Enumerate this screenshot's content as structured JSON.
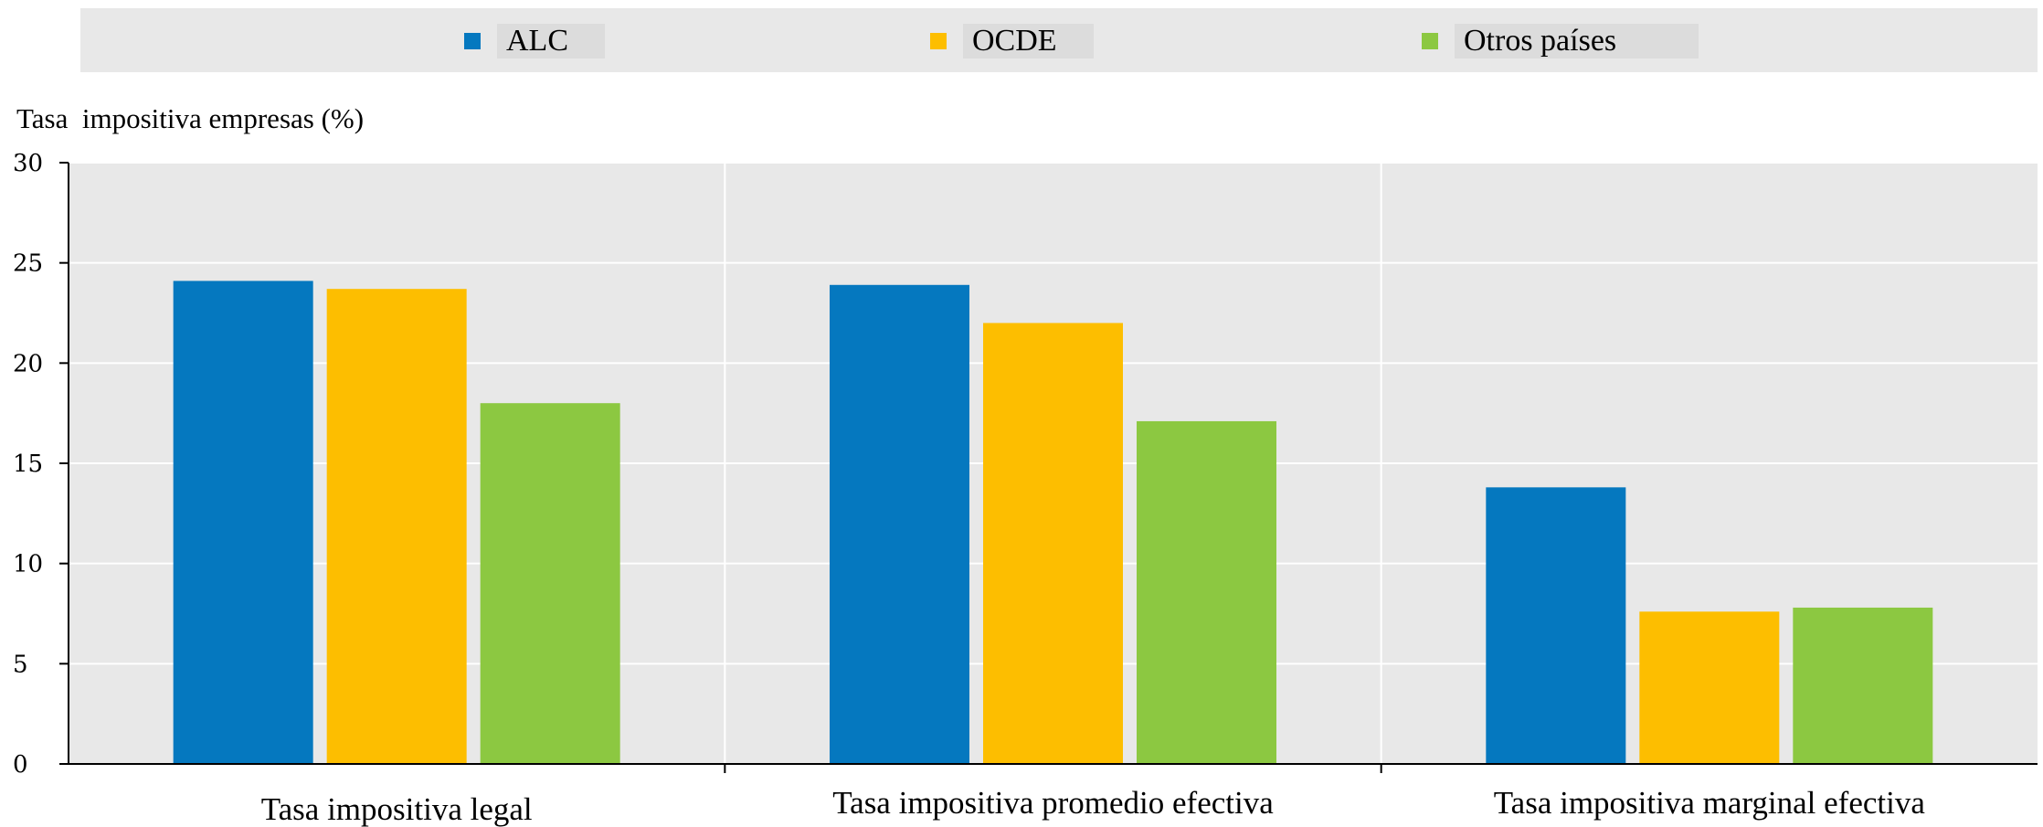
{
  "chart_data": {
    "type": "bar",
    "ylabel": "Tasa  impositiva empresas (%)",
    "ylim": [
      0,
      30
    ],
    "yticks": [
      0,
      5,
      10,
      15,
      20,
      25,
      30
    ],
    "categories": [
      "Tasa impositiva legal",
      "Tasa impositiva promedio efectiva",
      "Tasa impositiva marginal efectiva"
    ],
    "series": [
      {
        "name": "ALC",
        "color": "#0578bf",
        "values": [
          24.1,
          23.9,
          13.8
        ]
      },
      {
        "name": "OCDE",
        "color": "#fdbe00",
        "values": [
          23.7,
          22.0,
          7.6
        ]
      },
      {
        "name": "Otros países",
        "color": "#8cc841",
        "values": [
          18.0,
          17.1,
          7.8
        ]
      }
    ],
    "grid": true,
    "legend_position": "top"
  }
}
